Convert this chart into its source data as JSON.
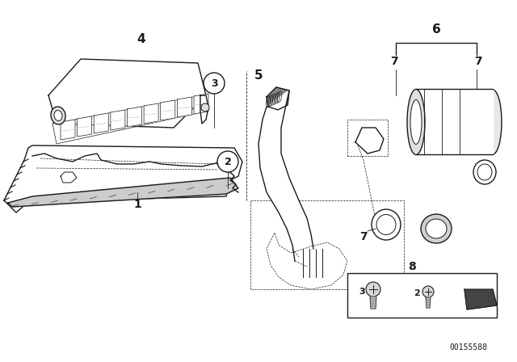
{
  "bg_color": "#ffffff",
  "line_color": "#1a1a1a",
  "watermark": "00155588",
  "fig_w": 6.4,
  "fig_h": 4.48,
  "dpi": 100
}
